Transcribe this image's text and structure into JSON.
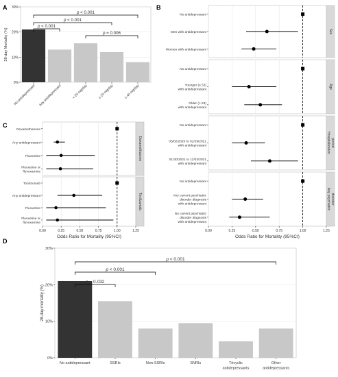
{
  "panel_letters": [
    "A",
    "B",
    "C",
    "D"
  ],
  "chart_data": [
    {
      "panel": "A",
      "type": "bar",
      "ylabel": "28-day Mortality (%)",
      "ylim": [
        0,
        30
      ],
      "yticks": [
        "0%",
        "10%",
        "20%",
        "30%"
      ],
      "categories": [
        "No antidepressant",
        "Any antidepressant",
        "< 20 mg/day",
        "≥ 20 mg/day",
        "≥ 40 mg/day"
      ],
      "values": [
        21,
        13,
        15.5,
        12,
        8
      ],
      "colors": [
        "#333333",
        "#c8c8c8",
        "#c8c8c8",
        "#c8c8c8",
        "#c8c8c8"
      ],
      "brackets": [
        {
          "from": 0,
          "to": 1,
          "label": "p < 0.001"
        },
        {
          "from": 0,
          "to": 3,
          "label": "p < 0.001"
        },
        {
          "from": 0,
          "to": 4,
          "label": "p < 0.001"
        },
        {
          "from": 2,
          "to": 4,
          "label": "p = 0.006"
        }
      ]
    },
    {
      "panel": "B",
      "type": "scatter",
      "subtype": "forest",
      "xlabel": "Odds Ratio for Mortality (95%CI)",
      "xlim": [
        0,
        1.25
      ],
      "xticks": [
        "0.00",
        "0.25",
        "0.50",
        "0.75",
        "1.00",
        "1.25"
      ],
      "reference_line": 1.0,
      "facets": [
        {
          "strip": "Sex",
          "rows": [
            {
              "label": [
                "No antidepressant"
              ],
              "or": 1.0,
              "lo": null,
              "hi": null,
              "ref": true
            },
            {
              "label": [
                "Men with antidepressant"
              ],
              "or": 0.62,
              "lo": 0.4,
              "hi": 0.95,
              "ref": false
            },
            {
              "label": [
                "Women with antidepressant"
              ],
              "or": 0.48,
              "lo": 0.35,
              "hi": 0.72,
              "ref": false
            }
          ]
        },
        {
          "strip": "Age",
          "rows": [
            {
              "label": [
                "No antidepressant"
              ],
              "or": 1.0,
              "lo": null,
              "hi": null,
              "ref": true
            },
            {
              "label": [
                "Younger (≤ 53)",
                "with antidepressant"
              ],
              "or": 0.43,
              "lo": 0.25,
              "hi": 0.72,
              "ref": false
            },
            {
              "label": [
                "Older (> 53)",
                "with antidepressant"
              ],
              "or": 0.55,
              "lo": 0.38,
              "hi": 0.78,
              "ref": false
            }
          ]
        },
        {
          "strip": "Hospitalization period",
          "rows": [
            {
              "label": [
                "No antidepressant"
              ],
              "or": 1.0,
              "lo": null,
              "hi": null,
              "ref": true
            },
            {
              "label": [
                "05/02/2020 to 01/29/2021",
                "with antidepressant"
              ],
              "or": 0.4,
              "lo": 0.25,
              "hi": 0.6,
              "ref": false
            },
            {
              "label": [
                "01/30/2021 to 11/02/2021",
                "with antidepressant"
              ],
              "or": 0.65,
              "lo": 0.45,
              "hi": 0.95,
              "ref": false
            }
          ]
        },
        {
          "strip": "Any psychiatric disorder",
          "rows": [
            {
              "label": [
                "No antidepressant"
              ],
              "or": 1.0,
              "lo": null,
              "hi": null,
              "ref": true
            },
            {
              "label": [
                "Any current psychiatric",
                "disorder diagnosis",
                "with antidepressant"
              ],
              "or": 0.39,
              "lo": 0.25,
              "hi": 0.58,
              "ref": false
            },
            {
              "label": [
                "No current psychiatric",
                "disorder diagnosis",
                "with antidepressant"
              ],
              "or": 0.33,
              "lo": 0.22,
              "hi": 0.65,
              "ref": false
            }
          ]
        }
      ]
    },
    {
      "panel": "C",
      "type": "scatter",
      "subtype": "forest",
      "xlabel": "Odds Ratio for Mortality (95%CI)",
      "xlim": [
        0,
        1.25
      ],
      "xticks": [
        "0.00",
        "0.25",
        "0.50",
        "0.75",
        "1.00",
        "1.25"
      ],
      "reference_line": 1.0,
      "facets": [
        {
          "strip": "Dexamethasone",
          "rows": [
            {
              "label": [
                "Dexamethasone"
              ],
              "or": 1.0,
              "lo": null,
              "hi": null,
              "ref": true
            },
            {
              "label": [
                "Any antidepressant"
              ],
              "or": 0.2,
              "lo": 0.15,
              "hi": 0.3,
              "ref": false
            },
            {
              "label": [
                "Fluoxetine"
              ],
              "or": 0.25,
              "lo": 0.05,
              "hi": 0.7,
              "ref": false
            },
            {
              "label": [
                "Fluoxetine or",
                "fluvoxamine"
              ],
              "or": 0.24,
              "lo": 0.05,
              "hi": 0.68,
              "ref": false
            }
          ]
        },
        {
          "strip": "Tocilizumab",
          "rows": [
            {
              "label": [
                "Tocilizumab"
              ],
              "or": 1.0,
              "lo": null,
              "hi": null,
              "ref": true
            },
            {
              "label": [
                "Any antidepressant"
              ],
              "or": 0.42,
              "lo": 0.2,
              "hi": 0.8,
              "ref": false
            },
            {
              "label": [
                "Fluoxetine"
              ],
              "or": 0.18,
              "lo": 0.05,
              "hi": 0.85,
              "ref": false
            },
            {
              "label": [
                "Fluoxetine or",
                "fluvoxamine"
              ],
              "or": 0.2,
              "lo": 0.05,
              "hi": 0.95,
              "ref": false
            }
          ]
        }
      ]
    },
    {
      "panel": "D",
      "type": "bar",
      "ylabel": "28-day mortality (%)",
      "ylim": [
        0,
        30
      ],
      "yticks": [
        "0%",
        "10%",
        "20%",
        "30%"
      ],
      "categories": [
        [
          "No antidepressant"
        ],
        [
          "SSRIs"
        ],
        [
          "Non-SSRIs"
        ],
        [
          "SNRIs"
        ],
        [
          "Tricyclic",
          "antidepressants"
        ],
        [
          "Other",
          "antidepressants"
        ]
      ],
      "values": [
        21,
        15.5,
        8,
        9.5,
        4.5,
        8
      ],
      "colors": [
        "#333333",
        "#c8c8c8",
        "#c8c8c8",
        "#c8c8c8",
        "#c8c8c8",
        "#c8c8c8"
      ],
      "brackets": [
        {
          "from": 0,
          "to": 1,
          "label": "p = 0.032"
        },
        {
          "from": 0,
          "to": 2,
          "label": "p < 0.001"
        },
        {
          "from": 0,
          "to": 5,
          "label": "p < 0.001"
        }
      ]
    }
  ]
}
